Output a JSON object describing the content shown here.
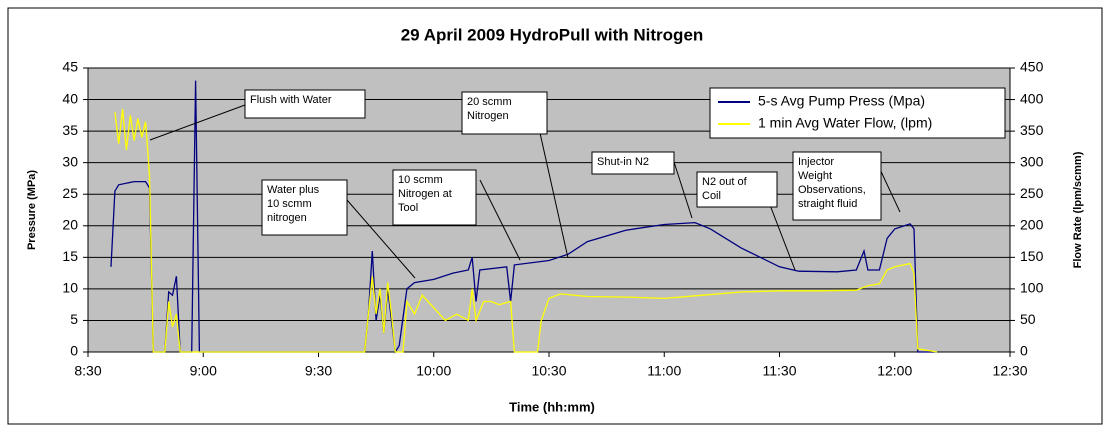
{
  "chart_data": {
    "type": "line",
    "title": "29 April 2009 HydroPull with Nitrogen",
    "xlabel": "Time (hh:mm)",
    "ylabel": "Pressure (MPa)",
    "y2label": "Flow Rate (lpm/scmm)",
    "xlim": [
      "8:30",
      "12:30"
    ],
    "xticks": [
      "8:30",
      "9:00",
      "9:30",
      "10:00",
      "10:30",
      "11:00",
      "11:30",
      "12:00",
      "12:30"
    ],
    "ylim": [
      0,
      45
    ],
    "yticks": [
      0,
      5,
      10,
      15,
      20,
      25,
      30,
      35,
      40,
      45
    ],
    "y2lim": [
      0,
      450
    ],
    "y2ticks": [
      0,
      50,
      100,
      150,
      200,
      250,
      300,
      350,
      400,
      450
    ],
    "grid": true,
    "legend": "upper right",
    "background": "#c0c0c0",
    "series": [
      {
        "name": "5-s Avg Pump Press (Mpa)",
        "color": "#000080",
        "axis": "y",
        "x": [
          "8:36",
          "8:37",
          "8:38",
          "8:42",
          "8:45",
          "8:46",
          "8:47",
          "8:50",
          "8:51",
          "8:52",
          "8:53",
          "8:54",
          "8:57",
          "8:58",
          "8:59",
          "9:42",
          "9:43",
          "9:44",
          "9:45",
          "9:46",
          "9:47",
          "9:48",
          "9:50",
          "9:51",
          "9:53",
          "9:55",
          "10:00",
          "10:05",
          "10:09",
          "10:10",
          "10:11",
          "10:12",
          "10:19",
          "10:20",
          "10:21",
          "10:30",
          "10:35",
          "10:40",
          "10:50",
          "11:00",
          "11:08",
          "11:12",
          "11:20",
          "11:30",
          "11:35",
          "11:45",
          "11:50",
          "11:52",
          "11:53",
          "11:56",
          "11:58",
          "12:00",
          "12:04",
          "12:05",
          "12:06",
          "12:11"
        ],
        "values": [
          13.5,
          25.5,
          26.5,
          27,
          27,
          26,
          0,
          0,
          9.5,
          9,
          12,
          0,
          0,
          43,
          0,
          0,
          6,
          16,
          5,
          9,
          3,
          10,
          0,
          1,
          10,
          11,
          11.5,
          12.5,
          13,
          15,
          8,
          13,
          13.5,
          8,
          13.8,
          14.5,
          15.5,
          17.5,
          19.3,
          20.2,
          20.5,
          19.5,
          16.5,
          13.5,
          12.8,
          12.7,
          13,
          16,
          13,
          13,
          18,
          19.5,
          20.3,
          19.5,
          0,
          0
        ]
      },
      {
        "name": "1 min Avg Water Flow, (lpm)",
        "color": "#ffff00",
        "axis": "y2",
        "x": [
          "8:37",
          "8:38",
          "8:39",
          "8:40",
          "8:41",
          "8:42",
          "8:43",
          "8:44",
          "8:45",
          "8:46",
          "8:47",
          "8:50",
          "8:51",
          "8:52",
          "8:53",
          "8:54",
          "9:42",
          "9:43",
          "9:44",
          "9:45",
          "9:46",
          "9:47",
          "9:48",
          "9:49",
          "9:50",
          "9:52",
          "9:53",
          "9:55",
          "9:57",
          "10:00",
          "10:03",
          "10:06",
          "10:09",
          "10:10",
          "10:11",
          "10:13",
          "10:15",
          "10:17",
          "10:20",
          "10:21",
          "10:27",
          "10:28",
          "10:30",
          "10:33",
          "10:40",
          "10:50",
          "11:00",
          "11:10",
          "11:20",
          "11:30",
          "11:40",
          "11:50",
          "11:53",
          "11:56",
          "11:58",
          "12:00",
          "12:04",
          "12:05",
          "12:06",
          "12:11"
        ],
        "values": [
          380,
          330,
          385,
          320,
          375,
          335,
          370,
          340,
          365,
          280,
          0,
          0,
          80,
          40,
          60,
          0,
          0,
          60,
          120,
          60,
          100,
          30,
          110,
          60,
          0,
          0,
          80,
          60,
          90,
          70,
          50,
          60,
          50,
          100,
          50,
          80,
          80,
          75,
          80,
          0,
          0,
          50,
          85,
          92,
          88,
          87,
          85,
          90,
          95,
          97,
          97,
          98,
          105,
          108,
          130,
          135,
          140,
          125,
          5,
          0
        ]
      }
    ],
    "annotations": [
      [
        "Flush with Water"
      ],
      [
        "20 scmm",
        "Nitrogen"
      ],
      [
        "Water plus",
        "10 scmm",
        "nitrogen"
      ],
      [
        "10 scmm",
        "Nitrogen at",
        "Tool"
      ],
      [
        "Shut-in N2"
      ],
      [
        "N2 out of",
        "Coil"
      ],
      [
        "Injector",
        "Weight",
        "Observations,",
        "straight fluid"
      ]
    ]
  }
}
